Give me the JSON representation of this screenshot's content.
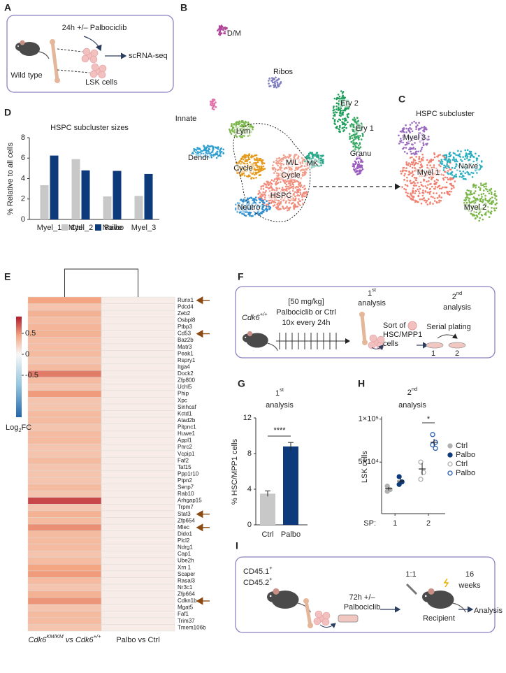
{
  "panels": {
    "labels": [
      "A",
      "B",
      "C",
      "D",
      "E",
      "F",
      "G",
      "H",
      "I"
    ],
    "a": {
      "treatment": "24h +/– Palbociclib",
      "mouse": "Wild type",
      "cells": "LSK cells",
      "assay": "scRNA-seq"
    },
    "b": {
      "clusters": [
        "D/M",
        "Ribos",
        "Innate",
        "Lym",
        "Dendr",
        "Cycle",
        "M/L",
        "Cycle",
        "MK",
        "HSPC",
        "Neutro",
        "Ery 2",
        "Ery 1",
        "Granu"
      ]
    },
    "c": {
      "title": "HSPC subcluster",
      "clusters": [
        "Myel 3",
        "Myel 1",
        "Naive",
        "Myel 2"
      ]
    },
    "f": {
      "genotype": [
        "Cdk6",
        "+/+"
      ],
      "dose": "[50 mg/kg]",
      "drug": "Palbociclib or Ctrl",
      "schedule": "10x every 24h",
      "first": [
        "1",
        "st",
        "analysis"
      ],
      "sort": [
        "Sort of",
        "HSC/MPP1",
        "cells"
      ],
      "second": [
        "2",
        "nd",
        "analysis"
      ],
      "plating": "Serial plating",
      "plates": [
        "1",
        "2"
      ]
    },
    "i": {
      "donor1": [
        "CD45.1",
        "+"
      ],
      "donor2": [
        "CD45.2",
        "+"
      ],
      "treatment": [
        "72h +/–",
        "Palbociclib"
      ],
      "ratio": "1:1",
      "recipient": "Recipient",
      "duration": [
        "16",
        "weeks"
      ],
      "readout": "Analysis"
    }
  },
  "chart_data": [
    {
      "type": "bar",
      "title": "HSPC subcluster sizes",
      "ylabel": "% Relative to all cells",
      "categories": [
        "Myel_1",
        "Myel_2",
        "Naive",
        "Myel_3"
      ],
      "series": [
        {
          "name": "Ctrl",
          "color": "#c8c8c8",
          "values": [
            3.35,
            5.9,
            2.25,
            2.3
          ]
        },
        {
          "name": "Palbo",
          "color": "#0d3a7a",
          "values": [
            6.25,
            4.8,
            4.75,
            4.45
          ]
        }
      ],
      "ylim": [
        0,
        8
      ],
      "yticks": [
        0,
        2,
        4,
        6,
        8
      ],
      "legend": "bottom"
    },
    {
      "type": "heatmap",
      "columns": [
        [
          "Cdk6",
          "KM/KM",
          " vs ",
          "Cdk6",
          "+/+"
        ],
        [
          "Palbo vs Ctrl"
        ]
      ],
      "rows": [
        "Runx1",
        "Pdcd4",
        "Zeb2",
        "Osbpl8",
        "Ptbp3",
        "Cd53",
        "Baz2b",
        "Matr3",
        "Peak1",
        "Rspry1",
        "Itga4",
        "Dock2",
        "Zfp800",
        "Uchl5",
        "Phip",
        "Xpc",
        "Sinhcaf",
        "Kctd1",
        "Atad2b",
        "Pitpnc1",
        "Huwe1",
        "Appl1",
        "Pnrc2",
        "Vcpip1",
        "Faf2",
        "Taf15",
        "Ppp1r10",
        "Ptpn2",
        "Senp7",
        "Rab10",
        "Arhgap15",
        "Trpm7",
        "Stat3",
        "Zfp654",
        "Mlec",
        "Dido1",
        "Plcl2",
        "Ndrg1",
        "Cap1",
        "Ube2h",
        "Xrn 1",
        "Scaper",
        "Rasal3",
        "Nr3c1",
        "Zfp664",
        "Cdkn1b",
        "Mgat5",
        "Faf1",
        "Trim37",
        "Tmem106b"
      ],
      "values": [
        [
          0.45,
          0.06
        ],
        [
          0.28,
          0.06
        ],
        [
          0.38,
          0.06
        ],
        [
          0.32,
          0.06
        ],
        [
          0.36,
          0.06
        ],
        [
          0.38,
          0.06
        ],
        [
          0.32,
          0.06
        ],
        [
          0.32,
          0.06
        ],
        [
          0.33,
          0.06
        ],
        [
          0.28,
          0.06
        ],
        [
          0.33,
          0.06
        ],
        [
          0.58,
          0.06
        ],
        [
          0.33,
          0.06
        ],
        [
          0.28,
          0.06
        ],
        [
          0.48,
          0.06
        ],
        [
          0.28,
          0.06
        ],
        [
          0.28,
          0.06
        ],
        [
          0.33,
          0.06
        ],
        [
          0.33,
          0.06
        ],
        [
          0.28,
          0.06
        ],
        [
          0.33,
          0.06
        ],
        [
          0.33,
          0.06
        ],
        [
          0.28,
          0.06
        ],
        [
          0.28,
          0.06
        ],
        [
          0.33,
          0.06
        ],
        [
          0.28,
          0.06
        ],
        [
          0.28,
          0.06
        ],
        [
          0.28,
          0.06
        ],
        [
          0.33,
          0.06
        ],
        [
          0.28,
          0.06
        ],
        [
          0.75,
          0.06
        ],
        [
          0.28,
          0.06
        ],
        [
          0.38,
          0.06
        ],
        [
          0.33,
          0.06
        ],
        [
          0.52,
          0.06
        ],
        [
          0.33,
          0.06
        ],
        [
          0.33,
          0.06
        ],
        [
          0.33,
          0.06
        ],
        [
          0.28,
          0.06
        ],
        [
          0.33,
          0.06
        ],
        [
          0.45,
          0.06
        ],
        [
          0.48,
          0.06
        ],
        [
          0.33,
          0.06
        ],
        [
          0.28,
          0.06
        ],
        [
          0.38,
          0.06
        ],
        [
          0.5,
          0.06
        ],
        [
          0.28,
          0.06
        ],
        [
          0.33,
          0.06
        ],
        [
          0.33,
          0.06
        ],
        [
          0.28,
          0.06
        ]
      ],
      "zlim": [
        -1.5,
        0.9
      ],
      "zticks": [
        0.5,
        0,
        -0.5
      ],
      "zlabel": [
        "Log",
        "2",
        "FC"
      ],
      "colors": [
        "#2166ac",
        "#92c5de",
        "#f7f7f7",
        "#f4a582",
        "#b2182b"
      ]
    },
    {
      "type": "bar",
      "title": [
        "1",
        "st",
        "analysis"
      ],
      "ylabel": "% HSC/MPP1 cells",
      "categories": [
        "Ctrl",
        "Palbo"
      ],
      "values": [
        3.5,
        8.8
      ],
      "errors": [
        0.3,
        0.45
      ],
      "colors": [
        "#c8c8c8",
        "#0d3a7a"
      ],
      "ylim": [
        0,
        12
      ],
      "yticks": [
        0,
        4,
        8,
        12
      ],
      "annotation": "****"
    },
    {
      "type": "scatter",
      "title": [
        "2",
        "nd",
        "analysis"
      ],
      "ylabel": "LSK cells",
      "xlabel": "SP:",
      "xlim": [
        0.6,
        2.5
      ],
      "xticks": [
        1,
        2
      ],
      "ylim": [
        -10000,
        103000
      ],
      "yticks": [
        {
          "value": 50000,
          "label": "5×10⁴"
        },
        {
          "value": 100000,
          "label": "1×10⁵"
        }
      ],
      "series": [
        {
          "name": "Ctrl",
          "color": "#b0b0b0",
          "filled": true,
          "x": [
            1,
            1,
            1
          ],
          "values": [
            22000,
            18000,
            16000
          ],
          "mean": 19000,
          "error": 2000
        },
        {
          "name": "Palbo",
          "color": "#0d3a7a",
          "filled": true,
          "x": [
            1,
            1,
            1
          ],
          "values": [
            33000,
            27000,
            24000
          ],
          "mean": 28000,
          "error": 3000
        },
        {
          "name": "Ctrl",
          "color": "#b0b0b0",
          "filled": false,
          "x": [
            2,
            2,
            2
          ],
          "values": [
            50000,
            38000,
            30000
          ],
          "mean": 42000,
          "error": 7000
        },
        {
          "name": "Palbo",
          "color": "#2a5fb5",
          "filled": false,
          "x": [
            2,
            2,
            2,
            2
          ],
          "values": [
            82000,
            73000,
            70000,
            66000
          ],
          "mean": 73000,
          "error": 4000
        }
      ],
      "annotation": "*",
      "legend": "right"
    }
  ]
}
